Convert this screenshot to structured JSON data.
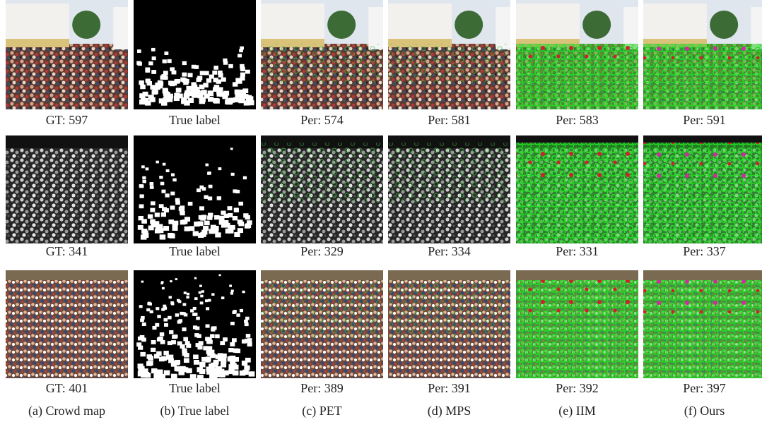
{
  "rows": [
    {
      "captions": [
        "GT: 597",
        "True label",
        "Per: 574",
        "Per: 581",
        "Per: 583",
        "Per: 591"
      ]
    },
    {
      "captions": [
        "GT: 341",
        "True label",
        "Per: 329",
        "Per: 334",
        "Per: 331",
        "Per: 337"
      ]
    },
    {
      "captions": [
        "GT: 401",
        "True label",
        "Per: 389",
        "Per: 391",
        "Per: 392",
        "Per: 397"
      ]
    }
  ],
  "column_labels": [
    "(a) Crowd map",
    "(b) True label",
    "(c) PET",
    "(d) MPS",
    "(e) IIM",
    "(f) Ours"
  ]
}
